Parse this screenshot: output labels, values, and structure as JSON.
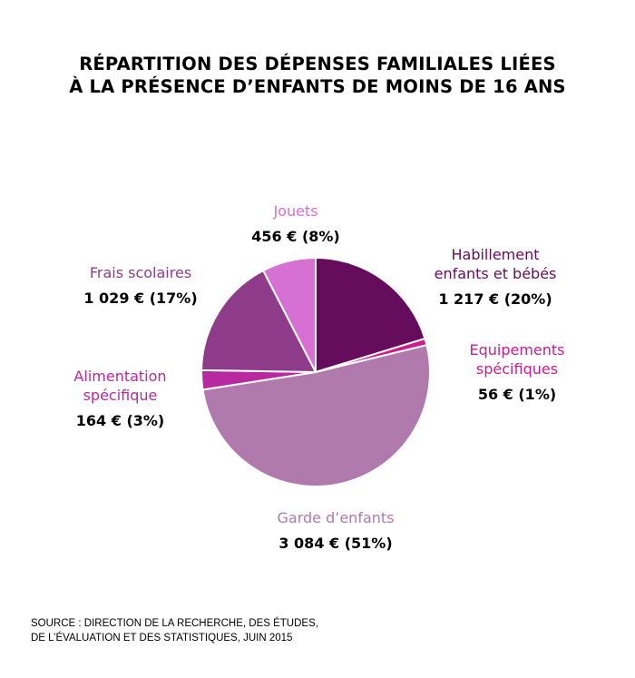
{
  "title_lines": [
    "RÉPARTITION DES DÉPENSES FAMILIALES LIÉES",
    "À LA PRÉSENCE D’ENFANTS DE MOINS DE 16 ANS"
  ],
  "source_lines": [
    "SOURCE : DIRECTION DE LA RECHERCHE, DES ÉTUDES,",
    "DE L’ÉVALUATION ET DES STATISTIQUES, JUIN 2015"
  ],
  "chart_data": {
    "type": "pie",
    "title": "RÉPARTITION DES DÉPENSES FAMILIALES LIÉES À LA PRÉSENCE D’ENFANTS DE MOINS DE 16 ANS",
    "unit": "€",
    "slices": [
      {
        "id": "habillement",
        "name": "Habillement enfants et bébés",
        "name_lines": [
          "Habillement",
          "enfants et bébés"
        ],
        "value": 1217,
        "value_label": "1 217 € (20%)",
        "color": "#660c5c"
      },
      {
        "id": "equipements",
        "name": "Equipements spécifiques",
        "name_lines": [
          "Equipements",
          "spécifiques"
        ],
        "value": 56,
        "value_label": "56 € (1%)",
        "color": "#cc1b8f"
      },
      {
        "id": "garde",
        "name": "Garde d’enfants",
        "name_lines": [
          "Garde d’enfants"
        ],
        "value": 3084,
        "value_label": "3 084 € (51%)",
        "color": "#b07aad"
      },
      {
        "id": "alimentation",
        "name": "Alimentation spécifique",
        "name_lines": [
          "Alimentation",
          "spécifique"
        ],
        "value": 164,
        "value_label": "164 € (3%)",
        "color": "#b8289f"
      },
      {
        "id": "frais",
        "name": "Frais scolaires",
        "name_lines": [
          "Frais scolaires"
        ],
        "value": 1029,
        "value_label": "1 029 € (17%)",
        "color": "#8e3b8a"
      },
      {
        "id": "jouets",
        "name": "Jouets",
        "name_lines": [
          "Jouets"
        ],
        "value": 456,
        "value_label": "456 € (8%)",
        "color": "#d670d3"
      }
    ],
    "label_colors": {
      "habillement": "#660c5c",
      "equipements": "#cc1b8f",
      "garde": "#b07aad",
      "alimentation": "#b8289f",
      "frais": "#8e3b8a",
      "jouets": "#d670d3"
    }
  }
}
